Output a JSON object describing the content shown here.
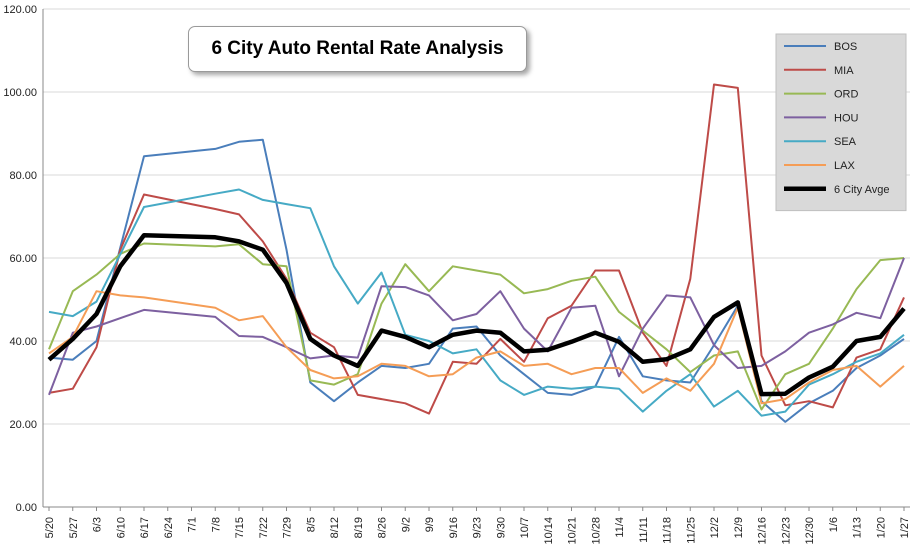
{
  "chart_data": {
    "type": "line",
    "title": "6 City Auto Rental Rate Analysis",
    "xlabel": "",
    "ylabel": "",
    "ylim": [
      0,
      120
    ],
    "yticks": [
      "0.00",
      "20.00",
      "40.00",
      "60.00",
      "80.00",
      "100.00",
      "120.00"
    ],
    "grid": "horizontal",
    "legend_position": "top-right",
    "categories": [
      "5/20",
      "5/27",
      "6/3",
      "6/10",
      "6/17",
      "6/24",
      "7/1",
      "7/8",
      "7/15",
      "7/22",
      "7/29",
      "8/5",
      "8/12",
      "8/19",
      "8/26",
      "9/2",
      "9/9",
      "9/16",
      "9/23",
      "9/30",
      "10/7",
      "10/14",
      "10/21",
      "10/28",
      "11/4",
      "11/11",
      "11/18",
      "11/25",
      "12/2",
      "12/9",
      "12/16",
      "12/23",
      "12/30",
      "1/6",
      "1/13",
      "1/20",
      "1/27"
    ],
    "series": [
      {
        "name": "BOS",
        "color": "#4a7ebb",
        "width": 2,
        "values": [
          36,
          35.5,
          40,
          62.5,
          84.5,
          null,
          null,
          86.3,
          88,
          88.5,
          62,
          30,
          25.5,
          30,
          34,
          33.5,
          34.5,
          43,
          43.5,
          36.5,
          32,
          27.5,
          27,
          29,
          41,
          31.5,
          30.5,
          30,
          39,
          48.5,
          25.5,
          20.5,
          25,
          28,
          33.5,
          36.5,
          40.5
        ]
      },
      {
        "name": "MIA",
        "color": "#be4b48",
        "width": 2,
        "values": [
          27.5,
          28.5,
          38.5,
          62,
          75.3,
          null,
          null,
          71.8,
          70.5,
          64,
          55,
          42,
          38.5,
          27,
          null,
          25,
          22.5,
          35,
          34.5,
          40.5,
          35,
          45.5,
          48.5,
          57,
          57,
          42,
          34,
          55,
          101.8,
          101,
          36.5,
          24.5,
          25.5,
          24,
          36,
          38,
          50.5
        ]
      },
      {
        "name": "ORD",
        "color": "#98b954",
        "width": 2,
        "values": [
          38,
          52,
          56,
          61,
          63.5,
          null,
          null,
          62.8,
          63.3,
          58.5,
          58,
          30.5,
          29.5,
          32,
          49,
          58.5,
          52,
          58,
          57,
          56,
          51.5,
          52.5,
          54.5,
          55.5,
          47,
          null,
          38,
          32.5,
          36.5,
          37.5,
          23.5,
          32,
          34.5,
          43,
          52.5,
          59.5,
          60
        ]
      },
      {
        "name": "HOU",
        "color": "#7d60a0",
        "width": 2,
        "values": [
          27,
          42,
          43.5,
          null,
          47.5,
          null,
          null,
          45.8,
          41.2,
          41,
          38.5,
          35.8,
          36.5,
          36,
          53.2,
          53,
          51,
          45,
          46.5,
          52,
          43,
          37.5,
          48,
          48.5,
          31.5,
          43,
          51,
          50.5,
          39,
          33.5,
          34,
          37.5,
          42,
          44,
          46.8,
          45.5,
          60
        ]
      },
      {
        "name": "SEA",
        "color": "#46aac5",
        "width": 2,
        "values": [
          47,
          46,
          49.5,
          null,
          72.3,
          null,
          null,
          75.5,
          76.5,
          74,
          73,
          72,
          58,
          49,
          56.5,
          41.5,
          40,
          37,
          38,
          30.5,
          27,
          29,
          28.5,
          29,
          28.5,
          23,
          28,
          32,
          24.2,
          28,
          22,
          23,
          29.5,
          32,
          35,
          37,
          41.5
        ]
      },
      {
        "name": "LAX",
        "color": "#f59d56",
        "width": 2,
        "values": [
          37,
          41,
          52,
          51,
          50.5,
          null,
          null,
          48,
          45,
          46,
          38.5,
          33,
          31,
          31.5,
          34.5,
          34,
          31.5,
          32,
          36,
          37.5,
          34,
          34.5,
          32,
          33.5,
          33.5,
          27.5,
          31,
          28,
          34.5,
          48,
          25,
          26,
          30,
          33,
          34,
          29,
          34
        ]
      },
      {
        "name": "6 City Avge",
        "color": "#000000",
        "width": 4.5,
        "values": [
          35.5,
          40.5,
          46.5,
          58,
          65.5,
          null,
          null,
          65,
          64,
          62,
          54,
          40.5,
          36.5,
          34,
          42.5,
          41,
          38.5,
          41.5,
          42.5,
          42,
          37.5,
          37.9,
          39.8,
          42,
          39.8,
          35,
          35.6,
          38,
          45.8,
          49.3,
          27.2,
          27.3,
          31.2,
          33.8,
          40,
          41,
          47.8
        ]
      }
    ]
  }
}
